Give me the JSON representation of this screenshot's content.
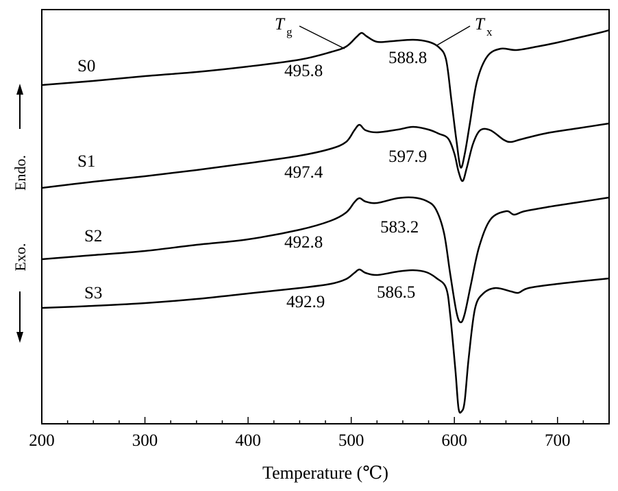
{
  "chart_data": {
    "type": "line",
    "title": "",
    "xlabel": "Temperature (℃)",
    "ylabel": "",
    "xlim": [
      200,
      750
    ],
    "xticks": [
      200,
      300,
      400,
      500,
      600,
      700
    ],
    "xtick_labels": [
      "200",
      "300",
      "400",
      "500",
      "600",
      "700"
    ],
    "y_axis": {
      "endo_label": "Endo.",
      "exo_label": "Exo.",
      "units": "arbitrary (curves offset vertically)"
    },
    "grid": false,
    "legend": "none",
    "markers": [
      {
        "name": "Tg",
        "symbol": "T",
        "subscript": "g"
      },
      {
        "name": "Tx",
        "symbol": "T",
        "subscript": "x"
      }
    ],
    "series": [
      {
        "name": "S0",
        "onset_labels": {
          "tg": "495.8",
          "tx": "588.8"
        },
        "points": [
          [
            200,
            124
          ],
          [
            250,
            118
          ],
          [
            300,
            111
          ],
          [
            350,
            105
          ],
          [
            400,
            97
          ],
          [
            450,
            87
          ],
          [
            480,
            76
          ],
          [
            495,
            68
          ],
          [
            505,
            54
          ],
          [
            510,
            48
          ],
          [
            515,
            53
          ],
          [
            525,
            61
          ],
          [
            540,
            60
          ],
          [
            560,
            58
          ],
          [
            575,
            61
          ],
          [
            585,
            69
          ],
          [
            592,
            87
          ],
          [
            597,
            145
          ],
          [
            602,
            205
          ],
          [
            606,
            244
          ],
          [
            610,
            225
          ],
          [
            615,
            180
          ],
          [
            622,
            118
          ],
          [
            632,
            82
          ],
          [
            645,
            71
          ],
          [
            660,
            73
          ],
          [
            680,
            68
          ],
          [
            700,
            62
          ],
          [
            720,
            55
          ],
          [
            740,
            48
          ],
          [
            750,
            44
          ]
        ]
      },
      {
        "name": "S1",
        "onset_labels": {
          "tg": "497.4",
          "tx": "597.9"
        },
        "points": [
          [
            200,
            274
          ],
          [
            250,
            265
          ],
          [
            300,
            257
          ],
          [
            350,
            248
          ],
          [
            400,
            238
          ],
          [
            450,
            227
          ],
          [
            480,
            217
          ],
          [
            495,
            207
          ],
          [
            503,
            190
          ],
          [
            508,
            182
          ],
          [
            514,
            190
          ],
          [
            525,
            193
          ],
          [
            545,
            189
          ],
          [
            560,
            185
          ],
          [
            575,
            189
          ],
          [
            585,
            195
          ],
          [
            594,
            202
          ],
          [
            600,
            224
          ],
          [
            604,
            250
          ],
          [
            608,
            264
          ],
          [
            612,
            245
          ],
          [
            618,
            210
          ],
          [
            625,
            190
          ],
          [
            635,
            190
          ],
          [
            648,
            204
          ],
          [
            655,
            207
          ],
          [
            665,
            203
          ],
          [
            690,
            194
          ],
          [
            720,
            187
          ],
          [
            750,
            180
          ]
        ]
      },
      {
        "name": "S2",
        "onset_labels": {
          "tg": "492.8",
          "tx": "583.2"
        },
        "points": [
          [
            200,
            378
          ],
          [
            250,
            372
          ],
          [
            300,
            366
          ],
          [
            350,
            357
          ],
          [
            400,
            349
          ],
          [
            450,
            335
          ],
          [
            480,
            322
          ],
          [
            495,
            310
          ],
          [
            503,
            295
          ],
          [
            508,
            289
          ],
          [
            514,
            294
          ],
          [
            525,
            296
          ],
          [
            545,
            289
          ],
          [
            560,
            288
          ],
          [
            573,
            293
          ],
          [
            582,
            305
          ],
          [
            590,
            340
          ],
          [
            596,
            400
          ],
          [
            602,
            455
          ],
          [
            606,
            470
          ],
          [
            610,
            458
          ],
          [
            616,
            415
          ],
          [
            624,
            360
          ],
          [
            635,
            320
          ],
          [
            650,
            308
          ],
          [
            658,
            313
          ],
          [
            668,
            308
          ],
          [
            690,
            302
          ],
          [
            720,
            295
          ],
          [
            750,
            288
          ]
        ]
      },
      {
        "name": "S3",
        "onset_labels": {
          "tg": "492.9",
          "tx": "586.5"
        },
        "points": [
          [
            200,
            449
          ],
          [
            250,
            446
          ],
          [
            300,
            442
          ],
          [
            350,
            436
          ],
          [
            400,
            428
          ],
          [
            450,
            420
          ],
          [
            480,
            414
          ],
          [
            495,
            407
          ],
          [
            503,
            398
          ],
          [
            508,
            393
          ],
          [
            514,
            398
          ],
          [
            525,
            401
          ],
          [
            545,
            396
          ],
          [
            560,
            394
          ],
          [
            573,
            397
          ],
          [
            583,
            406
          ],
          [
            592,
            420
          ],
          [
            596,
            460
          ],
          [
            601,
            540
          ],
          [
            604,
            595
          ],
          [
            607,
            600
          ],
          [
            610,
            585
          ],
          [
            614,
            520
          ],
          [
            620,
            450
          ],
          [
            628,
            428
          ],
          [
            640,
            420
          ],
          [
            655,
            425
          ],
          [
            662,
            427
          ],
          [
            672,
            420
          ],
          [
            700,
            414
          ],
          [
            730,
            409
          ],
          [
            750,
            406
          ]
        ]
      }
    ]
  }
}
